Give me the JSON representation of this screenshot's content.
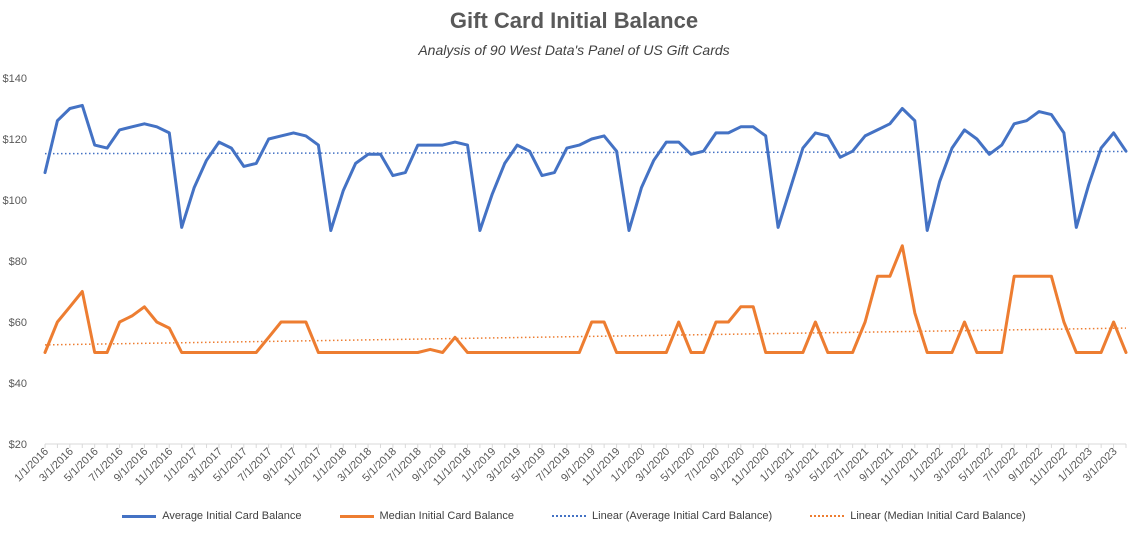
{
  "chart_data": {
    "type": "line",
    "title": "Gift Card Initial Balance",
    "subtitle": "Analysis of 90 West Data's Panel of US Gift Cards",
    "xlabel": "",
    "ylabel": "",
    "ylim": [
      20,
      140
    ],
    "yticks": [
      "$20",
      "$40",
      "$60",
      "$80",
      "$100",
      "$120",
      "$140"
    ],
    "ytick_values": [
      20,
      40,
      60,
      80,
      100,
      120,
      140
    ],
    "x": [
      "1/1/2016",
      "2/1/2016",
      "3/1/2016",
      "4/1/2016",
      "5/1/2016",
      "6/1/2016",
      "7/1/2016",
      "8/1/2016",
      "9/1/2016",
      "10/1/2016",
      "11/1/2016",
      "12/1/2016",
      "1/1/2017",
      "2/1/2017",
      "3/1/2017",
      "4/1/2017",
      "5/1/2017",
      "6/1/2017",
      "7/1/2017",
      "8/1/2017",
      "9/1/2017",
      "10/1/2017",
      "11/1/2017",
      "12/1/2017",
      "1/1/2018",
      "2/1/2018",
      "3/1/2018",
      "4/1/2018",
      "5/1/2018",
      "6/1/2018",
      "7/1/2018",
      "8/1/2018",
      "9/1/2018",
      "10/1/2018",
      "11/1/2018",
      "12/1/2018",
      "1/1/2019",
      "2/1/2019",
      "3/1/2019",
      "4/1/2019",
      "5/1/2019",
      "6/1/2019",
      "7/1/2019",
      "8/1/2019",
      "9/1/2019",
      "10/1/2019",
      "11/1/2019",
      "12/1/2019",
      "1/1/2020",
      "2/1/2020",
      "3/1/2020",
      "4/1/2020",
      "5/1/2020",
      "6/1/2020",
      "7/1/2020",
      "8/1/2020",
      "9/1/2020",
      "10/1/2020",
      "11/1/2020",
      "12/1/2020",
      "1/1/2021",
      "2/1/2021",
      "3/1/2021",
      "4/1/2021",
      "5/1/2021",
      "6/1/2021",
      "7/1/2021",
      "8/1/2021",
      "9/1/2021",
      "10/1/2021",
      "11/1/2021",
      "12/1/2021",
      "1/1/2022",
      "2/1/2022",
      "3/1/2022",
      "4/1/2022",
      "5/1/2022",
      "6/1/2022",
      "7/1/2022",
      "8/1/2022",
      "9/1/2022",
      "10/1/2022",
      "11/1/2022",
      "12/1/2022",
      "1/1/2023",
      "2/1/2023",
      "3/1/2023",
      "4/1/2023"
    ],
    "xtick_labels": [
      "1/1/2016",
      "3/1/2016",
      "5/1/2016",
      "7/1/2016",
      "9/1/2016",
      "11/1/2016",
      "1/1/2017",
      "3/1/2017",
      "5/1/2017",
      "7/1/2017",
      "9/1/2017",
      "11/1/2017",
      "1/1/2018",
      "3/1/2018",
      "5/1/2018",
      "7/1/2018",
      "9/1/2018",
      "11/1/2018",
      "1/1/2019",
      "3/1/2019",
      "5/1/2019",
      "7/1/2019",
      "9/1/2019",
      "11/1/2019",
      "1/1/2020",
      "3/1/2020",
      "5/1/2020",
      "7/1/2020",
      "9/1/2020",
      "11/1/2020",
      "1/1/2021",
      "3/1/2021",
      "5/1/2021",
      "7/1/2021",
      "9/1/2021",
      "11/1/2021",
      "1/1/2022",
      "3/1/2022",
      "5/1/2022",
      "7/1/2022",
      "9/1/2022",
      "11/1/2022",
      "1/1/2023",
      "3/1/2023"
    ],
    "series": [
      {
        "name": "Average Initial Card Balance",
        "color": "#4472C4",
        "values": [
          109,
          126,
          130,
          131,
          118,
          117,
          123,
          124,
          125,
          124,
          122,
          91,
          104,
          113,
          119,
          117,
          111,
          112,
          120,
          121,
          122,
          121,
          118,
          90,
          103,
          112,
          115,
          115,
          108,
          109,
          118,
          118,
          118,
          119,
          118,
          90,
          102,
          112,
          118,
          116,
          108,
          109,
          117,
          118,
          120,
          121,
          116,
          90,
          104,
          113,
          119,
          119,
          115,
          116,
          122,
          122,
          124,
          124,
          121,
          91,
          104,
          117,
          122,
          121,
          114,
          116,
          121,
          123,
          125,
          130,
          126,
          90,
          106,
          117,
          123,
          120,
          115,
          118,
          125,
          126,
          129,
          128,
          122,
          91,
          105,
          117,
          122,
          116
        ]
      },
      {
        "name": "Median Initial Card Balance",
        "color": "#ED7D31",
        "values": [
          50,
          60,
          65,
          70,
          50,
          50,
          60,
          62,
          65,
          60,
          58,
          50,
          50,
          50,
          50,
          50,
          50,
          50,
          55,
          60,
          60,
          60,
          50,
          50,
          50,
          50,
          50,
          50,
          50,
          50,
          50,
          51,
          50,
          55,
          50,
          50,
          50,
          50,
          50,
          50,
          50,
          50,
          50,
          50,
          60,
          60,
          50,
          50,
          50,
          50,
          50,
          60,
          50,
          50,
          60,
          60,
          65,
          65,
          50,
          50,
          50,
          50,
          60,
          50,
          50,
          50,
          60,
          75,
          75,
          85,
          63,
          50,
          50,
          50,
          60,
          50,
          50,
          50,
          75,
          75,
          75,
          75,
          60,
          50,
          50,
          50,
          60,
          50
        ]
      }
    ],
    "trendlines": [
      {
        "name": "Linear (Average Initial Card Balance)",
        "color": "#4472C4",
        "start": 115.2,
        "end": 115.9
      },
      {
        "name": "Linear (Median Initial Card Balance)",
        "color": "#ED7D31",
        "start": 52.5,
        "end": 58.0
      }
    ],
    "grid": false,
    "legend_position": "bottom"
  }
}
